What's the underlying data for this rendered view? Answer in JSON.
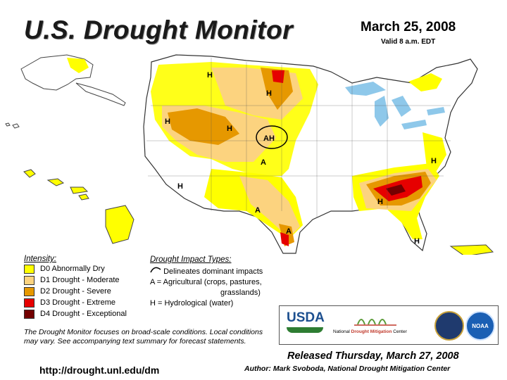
{
  "header": {
    "title": "U.S. Drought Monitor",
    "date": "March 25, 2008",
    "valid": "Valid 8 a.m. EDT"
  },
  "legend": {
    "intensity_heading": "Intensity:",
    "items": [
      {
        "label": "D0 Abnormally Dry",
        "color": "#ffff00"
      },
      {
        "label": "D1 Drought - Moderate",
        "color": "#fcd37f"
      },
      {
        "label": "D2 Drought - Severe",
        "color": "#e69800"
      },
      {
        "label": "D3 Drought - Extreme",
        "color": "#e60000"
      },
      {
        "label": "D4 Drought - Exceptional",
        "color": "#730000"
      }
    ]
  },
  "impact": {
    "heading": "Drought Impact Types:",
    "delineates": "Delineates dominant impacts",
    "agricultural": "A = Agricultural (crops, pastures,",
    "agricultural_cont": "grasslands)",
    "hydrological": "H = Hydrological (water)"
  },
  "note": "The Drought Monitor focuses on broad-scale conditions. Local conditions may vary. See accompanying text summary for forecast statements.",
  "url": "http://drought.unl.edu/dm",
  "logos": {
    "usda": "USDA",
    "ndmc_prefix": "National",
    "ndmc_name": "Drought Mitigation",
    "ndmc_suffix": "Center",
    "noaa": "NOAA"
  },
  "released": "Released Thursday, March 27, 2008",
  "author": "Author: Mark Svoboda, National Drought Mitigation Center",
  "map_labels": {
    "h": "H",
    "a": "A",
    "ah": "AH"
  }
}
